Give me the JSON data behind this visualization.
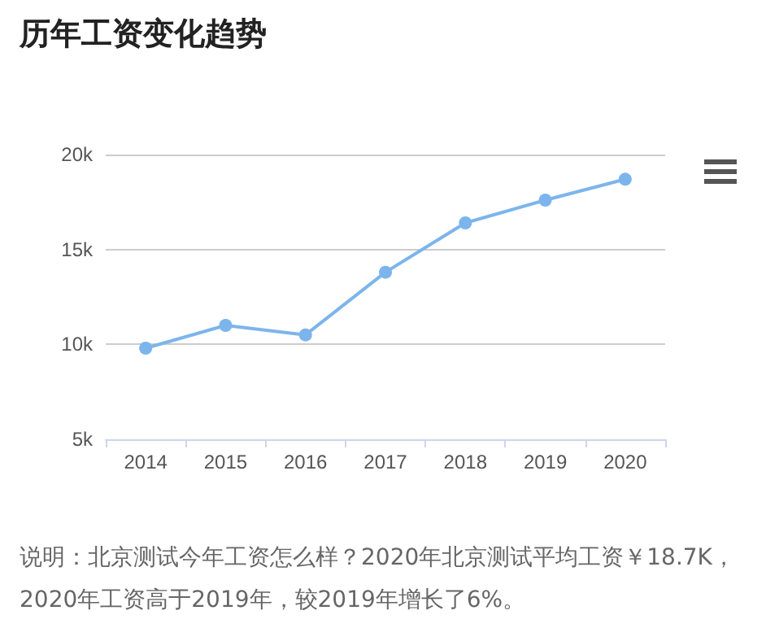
{
  "chart_data": {
    "type": "line",
    "title": "历年工资变化趋势",
    "categories": [
      "2014",
      "2015",
      "2016",
      "2017",
      "2018",
      "2019",
      "2020"
    ],
    "series": [
      {
        "color": "#7cb5ec",
        "values": [
          9800,
          11000,
          10500,
          13800,
          16400,
          17600,
          18700
        ]
      }
    ],
    "ylim": [
      5000,
      20000
    ],
    "yticks": [
      {
        "value": 5000,
        "label": "5k"
      },
      {
        "value": 10000,
        "label": "10k"
      },
      {
        "value": 15000,
        "label": "15k"
      },
      {
        "value": 20000,
        "label": "20k"
      }
    ],
    "grid": "y",
    "marker": "circle",
    "line_style": "solid",
    "annotations": [
      "说明：北京测试今年工资怎么样？2020年北京测试平均工资￥18.7K，2020年工资高于2019年，较2019年增长了6%。"
    ]
  }
}
